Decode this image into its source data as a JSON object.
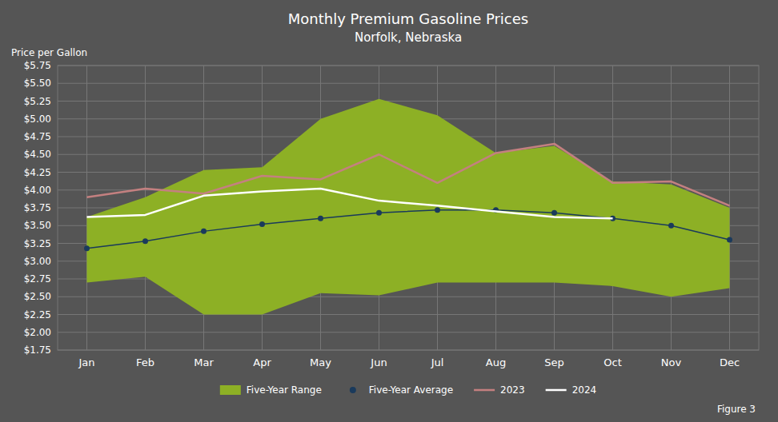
{
  "chart_data": {
    "type": "line",
    "title": "Monthly Premium Gasoline Prices",
    "subtitle": "Norfolk, Nebraska",
    "y_label": "Price per Gallon",
    "annotation": "Figure 3",
    "categories": [
      "Jan",
      "Feb",
      "Mar",
      "Apr",
      "May",
      "Jun",
      "Jul",
      "Aug",
      "Sep",
      "Oct",
      "Nov",
      "Dec"
    ],
    "series": [
      {
        "name": "Five-Year Range",
        "type": "range",
        "color": "#8db025",
        "low": [
          2.7,
          2.78,
          2.25,
          2.25,
          2.55,
          2.52,
          2.7,
          2.7,
          2.7,
          2.65,
          2.5,
          2.62
        ],
        "high": [
          3.62,
          3.9,
          4.28,
          4.32,
          5.0,
          5.28,
          5.05,
          4.52,
          4.62,
          4.12,
          4.08,
          3.75
        ]
      },
      {
        "name": "Five-Year Average",
        "type": "line",
        "marker": "circle",
        "color": "#1a3a5c",
        "values": [
          3.18,
          3.28,
          3.42,
          3.52,
          3.6,
          3.68,
          3.72,
          3.72,
          3.68,
          3.6,
          3.5,
          3.3
        ]
      },
      {
        "name": "2023",
        "type": "line",
        "color": "#c48080",
        "values": [
          3.9,
          4.02,
          3.95,
          4.2,
          4.15,
          4.5,
          4.1,
          4.52,
          4.65,
          4.1,
          4.12,
          3.78
        ]
      },
      {
        "name": "2024",
        "type": "line",
        "color": "#ffffff",
        "values": [
          3.62,
          3.65,
          3.92,
          3.98,
          4.02,
          3.85,
          3.78,
          3.7,
          3.62,
          3.6,
          null,
          null
        ]
      }
    ],
    "ylim": [
      1.75,
      5.75
    ],
    "yticks": [
      {
        "value": 1.75,
        "label": "$1.75"
      },
      {
        "value": 2.0,
        "label": "$2.00"
      },
      {
        "value": 2.25,
        "label": "$2.25"
      },
      {
        "value": 2.5,
        "label": "$2.50"
      },
      {
        "value": 2.75,
        "label": "$2.75"
      },
      {
        "value": 3.0,
        "label": "$3.00"
      },
      {
        "value": 3.25,
        "label": "$3.25"
      },
      {
        "value": 3.5,
        "label": "$3.50"
      },
      {
        "value": 3.75,
        "label": "$3.75"
      },
      {
        "value": 4.0,
        "label": "$4.00"
      },
      {
        "value": 4.25,
        "label": "$4.25"
      },
      {
        "value": 4.5,
        "label": "$4.50"
      },
      {
        "value": 4.75,
        "label": "$4.75"
      },
      {
        "value": 5.0,
        "label": "$5.00"
      },
      {
        "value": 5.25,
        "label": "$5.25"
      },
      {
        "value": 5.5,
        "label": "$5.50"
      },
      {
        "value": 5.75,
        "label": "$5.75"
      }
    ],
    "grid": true,
    "legend": "bottom"
  }
}
